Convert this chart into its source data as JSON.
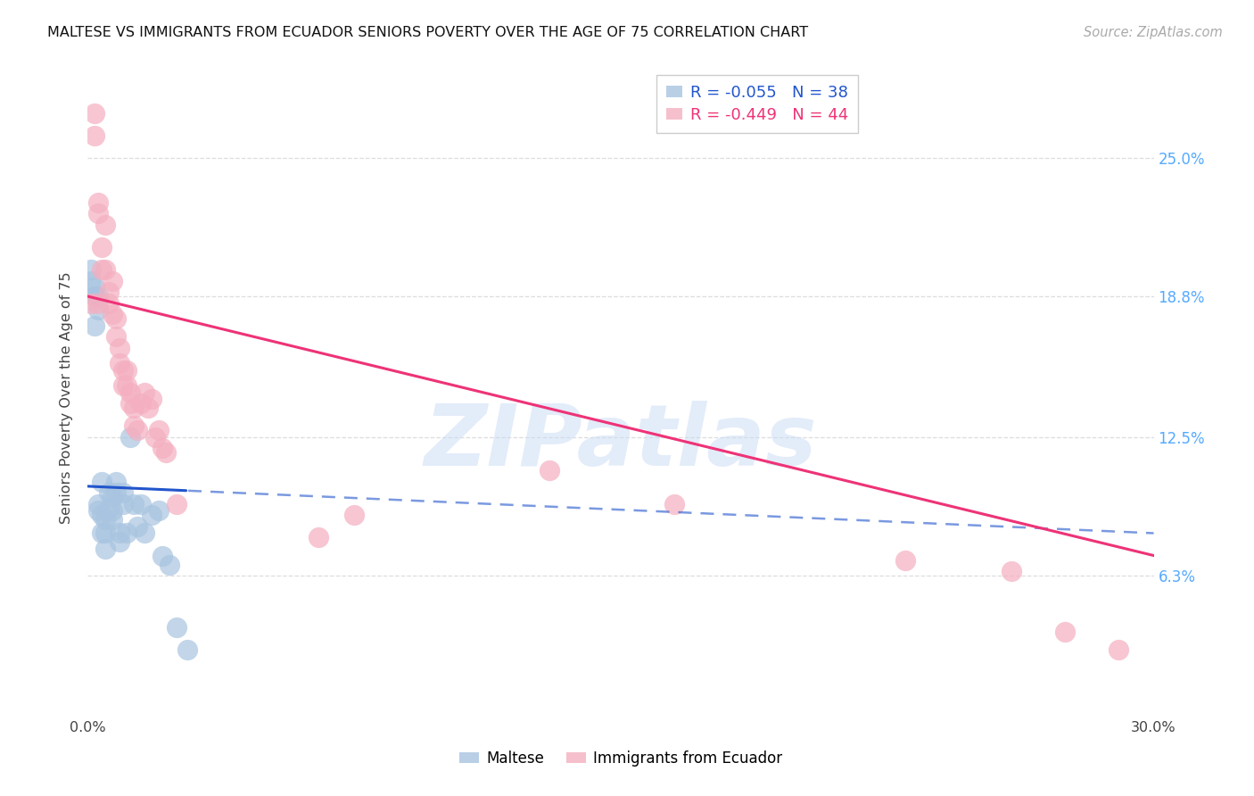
{
  "title": "MALTESE VS IMMIGRANTS FROM ECUADOR SENIORS POVERTY OVER THE AGE OF 75 CORRELATION CHART",
  "source": "Source: ZipAtlas.com",
  "ylabel": "Seniors Poverty Over the Age of 75",
  "ytick_labels": [
    "25.0%",
    "18.8%",
    "12.5%",
    "6.3%"
  ],
  "ytick_values": [
    0.25,
    0.188,
    0.125,
    0.063
  ],
  "xmin": 0.0,
  "xmax": 0.3,
  "ymin": 0.0,
  "ymax": 0.285,
  "maltese_color": "#a8c4e0",
  "ecuador_color": "#f4afc0",
  "maltese_line_color": "#2255cc",
  "ecuador_line_color": "#ee3377",
  "background_color": "#ffffff",
  "grid_color": "#dddddd",
  "watermark": "ZIPatlas",
  "maltese_R": -0.055,
  "maltese_N": 38,
  "ecuador_R": -0.449,
  "ecuador_N": 44,
  "maltese_x": [
    0.001,
    0.001,
    0.002,
    0.002,
    0.002,
    0.003,
    0.003,
    0.003,
    0.003,
    0.004,
    0.004,
    0.004,
    0.005,
    0.005,
    0.005,
    0.006,
    0.006,
    0.007,
    0.007,
    0.007,
    0.008,
    0.008,
    0.009,
    0.009,
    0.01,
    0.01,
    0.011,
    0.012,
    0.013,
    0.014,
    0.015,
    0.016,
    0.018,
    0.02,
    0.021,
    0.023,
    0.025,
    0.028
  ],
  "maltese_y": [
    0.195,
    0.2,
    0.188,
    0.192,
    0.175,
    0.182,
    0.188,
    0.095,
    0.092,
    0.105,
    0.09,
    0.082,
    0.088,
    0.082,
    0.075,
    0.1,
    0.093,
    0.098,
    0.092,
    0.088,
    0.105,
    0.1,
    0.082,
    0.078,
    0.1,
    0.095,
    0.082,
    0.125,
    0.095,
    0.085,
    0.095,
    0.082,
    0.09,
    0.092,
    0.072,
    0.068,
    0.04,
    0.03
  ],
  "ecuador_x": [
    0.001,
    0.002,
    0.002,
    0.003,
    0.003,
    0.003,
    0.004,
    0.004,
    0.005,
    0.005,
    0.006,
    0.006,
    0.007,
    0.007,
    0.008,
    0.008,
    0.009,
    0.009,
    0.01,
    0.01,
    0.011,
    0.011,
    0.012,
    0.012,
    0.013,
    0.013,
    0.014,
    0.015,
    0.016,
    0.017,
    0.018,
    0.019,
    0.02,
    0.021,
    0.022,
    0.025,
    0.065,
    0.075,
    0.13,
    0.165,
    0.23,
    0.26,
    0.275,
    0.29
  ],
  "ecuador_y": [
    0.185,
    0.27,
    0.26,
    0.23,
    0.225,
    0.185,
    0.21,
    0.2,
    0.22,
    0.2,
    0.19,
    0.185,
    0.195,
    0.18,
    0.178,
    0.17,
    0.165,
    0.158,
    0.155,
    0.148,
    0.155,
    0.148,
    0.145,
    0.14,
    0.138,
    0.13,
    0.128,
    0.14,
    0.145,
    0.138,
    0.142,
    0.125,
    0.128,
    0.12,
    0.118,
    0.095,
    0.08,
    0.09,
    0.11,
    0.095,
    0.07,
    0.065,
    0.038,
    0.03
  ],
  "xtick_positions": [
    0.0,
    0.05,
    0.1,
    0.15,
    0.2,
    0.25,
    0.3
  ],
  "xtick_labels_show": [
    "0.0%",
    "",
    "",
    "",
    "",
    "",
    "30.0%"
  ]
}
